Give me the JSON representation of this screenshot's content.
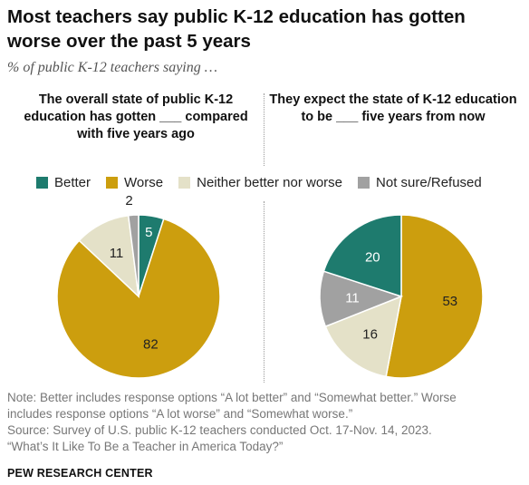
{
  "title": "Most teachers say public K-12 education has gotten worse over the past 5 years",
  "subtitle": "% of public K-12 teachers saying …",
  "colors": {
    "better": "#1e7b6e",
    "worse": "#cc9e0e",
    "neither": "#e4e1c8",
    "not_sure": "#a1a1a1"
  },
  "legend": [
    {
      "label": "Better",
      "color": "#1e7b6e"
    },
    {
      "label": "Worse",
      "color": "#cc9e0e"
    },
    {
      "label": "Neither better nor worse",
      "color": "#e4e1c8"
    },
    {
      "label": "Not sure/Refused",
      "color": "#a1a1a1"
    }
  ],
  "chart_data": [
    {
      "type": "pie",
      "title": "The overall state of public K-12 education has gotten ___ compared with five years ago",
      "categories": [
        "Better",
        "Worse",
        "Neither better nor worse",
        "Not sure/Refused"
      ],
      "values": [
        5,
        82,
        11,
        2
      ],
      "slice_order": [
        "Better",
        "Worse",
        "Neither better nor worse",
        "Not sure/Refused"
      ]
    },
    {
      "type": "pie",
      "title": "They expect the state of K-12 education to be ___ five years from now",
      "categories": [
        "Better",
        "Worse",
        "Neither better nor worse",
        "Not sure/Refused"
      ],
      "values": [
        20,
        53,
        16,
        11
      ],
      "slice_order": [
        "Worse",
        "Neither better nor worse",
        "Not sure/Refused",
        "Better"
      ]
    }
  ],
  "note": {
    "line1": "Note: Better includes response options “A lot better” and “Somewhat better.” Worse",
    "line2": "includes response options “A lot worse” and “Somewhat worse.”",
    "line3": "Source: Survey of U.S. public K-12 teachers conducted Oct. 17-Nov. 14, 2023.",
    "line4": "“What’s It Like To Be a Teacher in America Today?”"
  },
  "brand": "PEW RESEARCH CENTER"
}
